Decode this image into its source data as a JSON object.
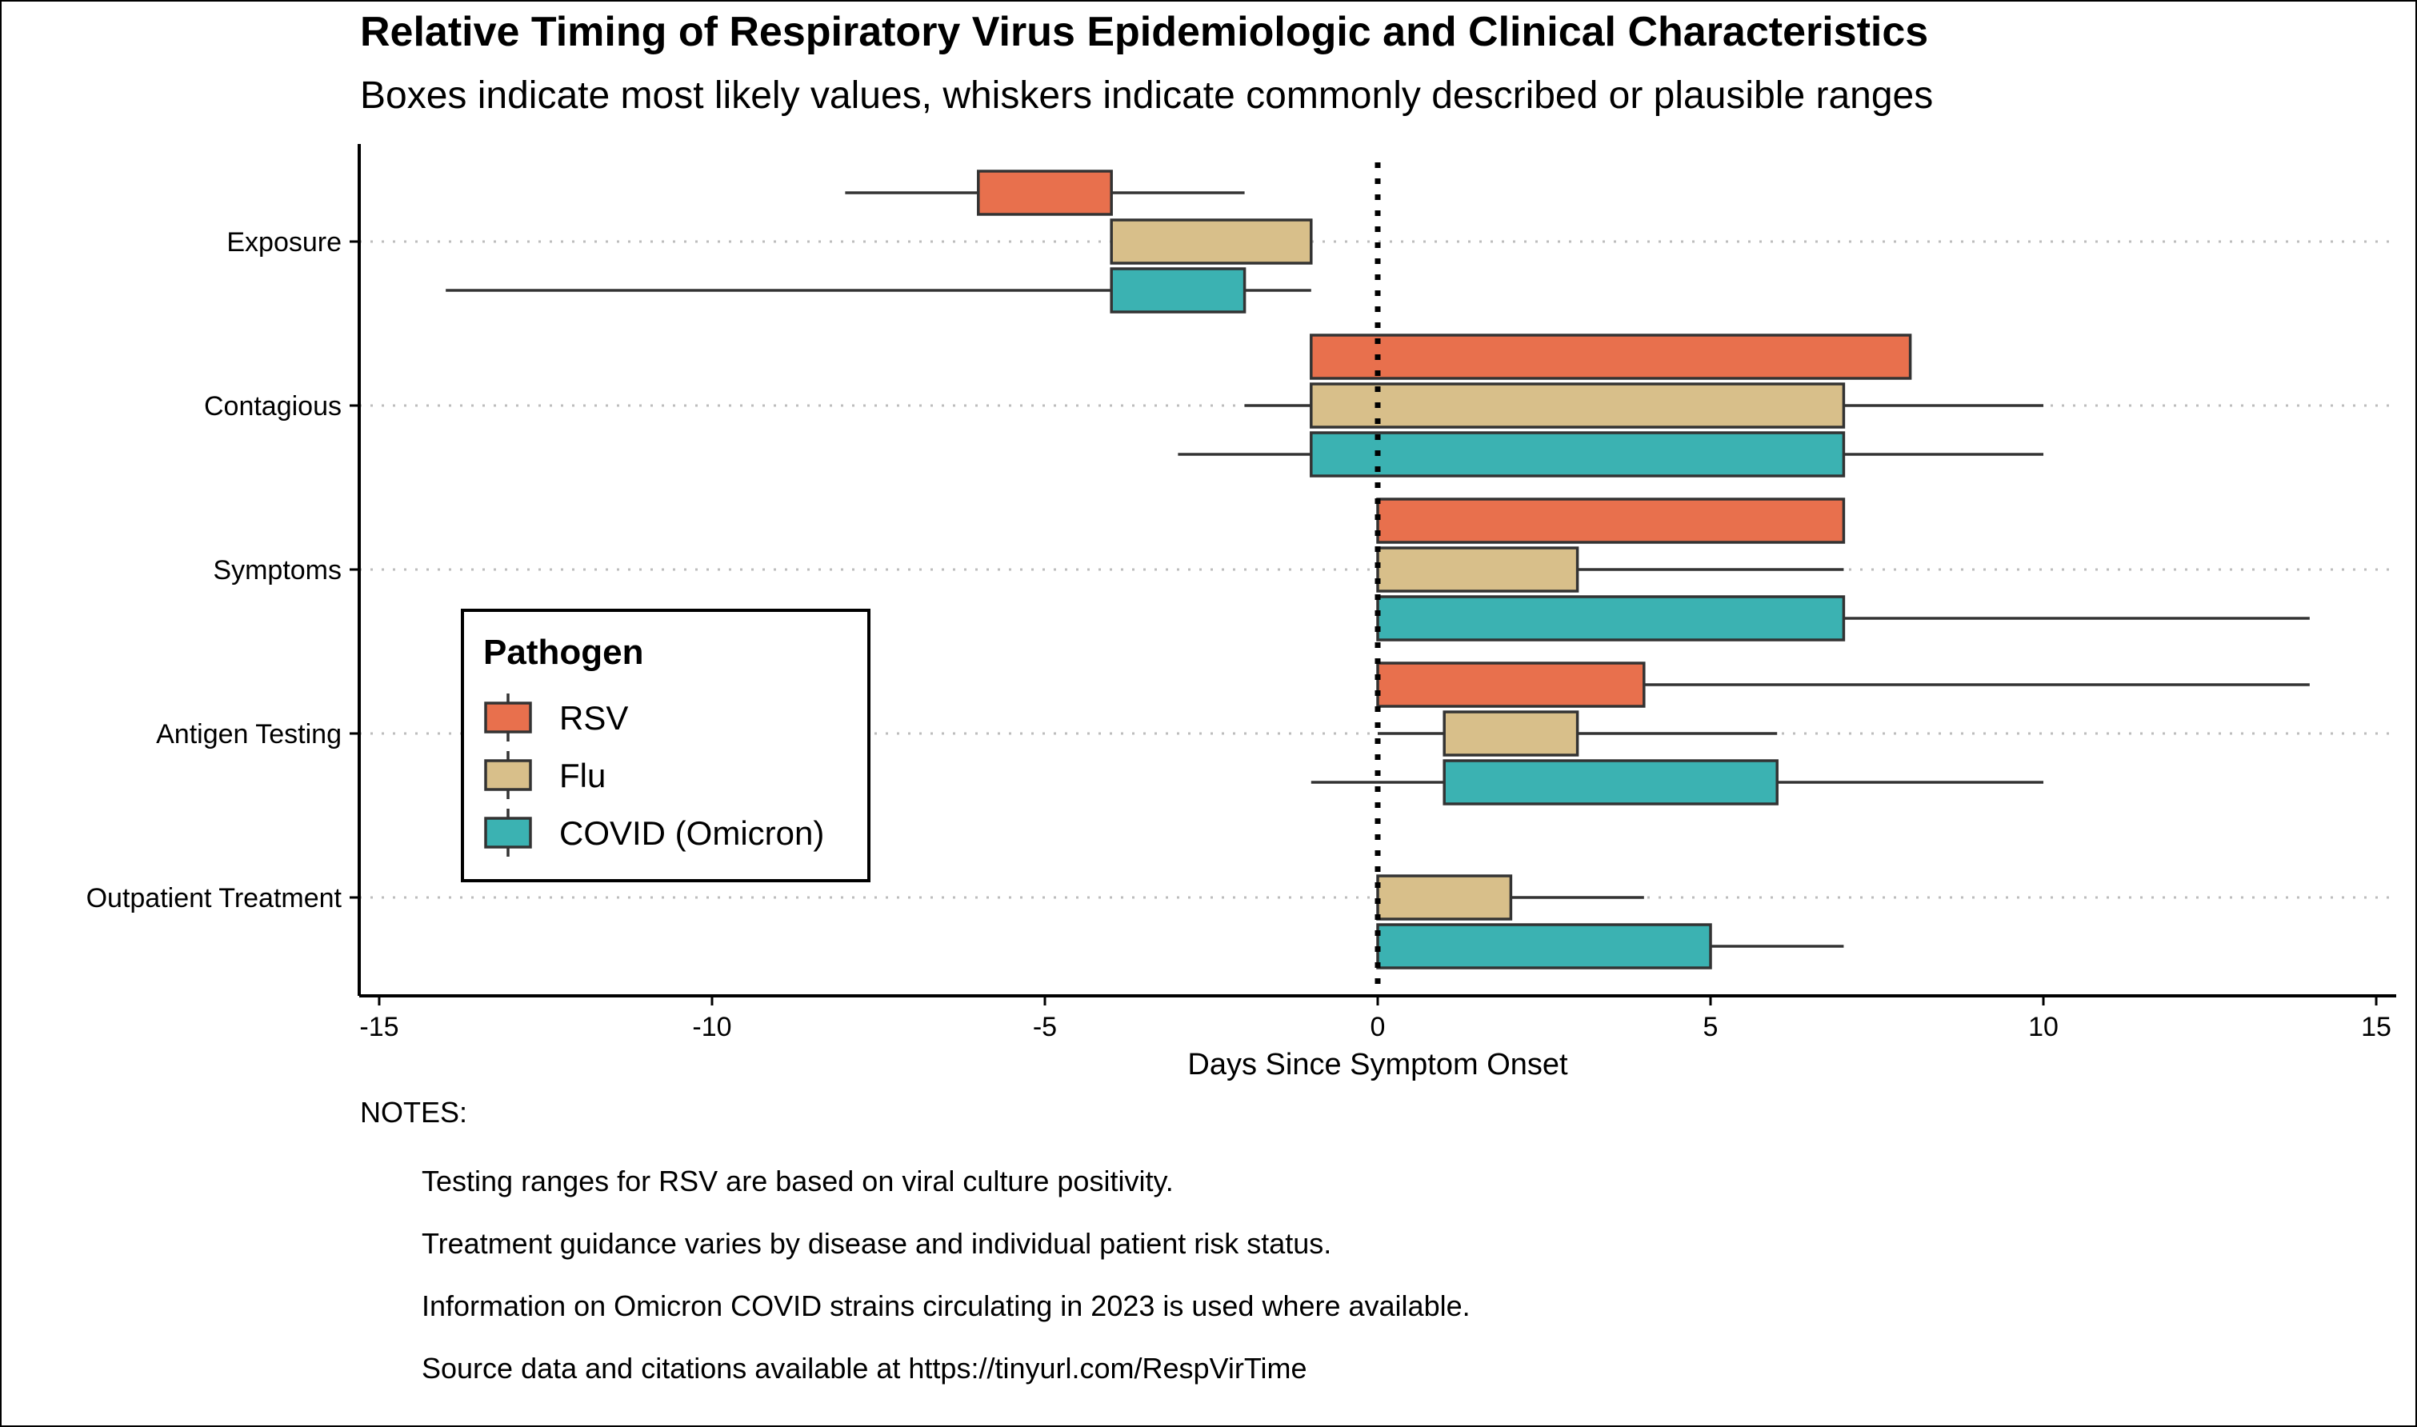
{
  "chart_data": {
    "type": "boxplot-horizontal",
    "title": "Relative Timing of Respiratory Virus Epidemiologic and Clinical Characteristics",
    "subtitle": "Boxes indicate most likely values, whiskers indicate commonly described or plausible ranges",
    "xlabel": "Days Since Symptom Onset",
    "xlim": [
      -15.3,
      15.3
    ],
    "xticks": [
      -15,
      -10,
      -5,
      0,
      5,
      10,
      15
    ],
    "reference_line_x": 0,
    "grid": "dotted horizontal at categories",
    "categories": [
      "Exposure",
      "Contagious",
      "Symptoms",
      "Antigen Testing",
      "Outpatient Treatment"
    ],
    "legend": {
      "title": "Pathogen",
      "placement": "bottom-left inside plot",
      "entries": [
        "RSV",
        "Flu",
        "COVID (Omicron)"
      ]
    },
    "series": [
      {
        "name": "RSV",
        "color": "#E8704D",
        "data": [
          {
            "category": "Exposure",
            "whisker_min": -8,
            "box_min": -6,
            "box_max": -4,
            "whisker_max": -2
          },
          {
            "category": "Contagious",
            "whisker_min": -1,
            "box_min": -1,
            "box_max": 8,
            "whisker_max": 8
          },
          {
            "category": "Symptoms",
            "whisker_min": 0,
            "box_min": 0,
            "box_max": 7,
            "whisker_max": 7
          },
          {
            "category": "Antigen Testing",
            "whisker_min": 0,
            "box_min": 0,
            "box_max": 4,
            "whisker_max": 14
          }
        ]
      },
      {
        "name": "Flu",
        "color": "#D8BF8A",
        "data": [
          {
            "category": "Exposure",
            "whisker_min": -4,
            "box_min": -4,
            "box_max": -1,
            "whisker_max": -1
          },
          {
            "category": "Contagious",
            "whisker_min": -2,
            "box_min": -1,
            "box_max": 7,
            "whisker_max": 10
          },
          {
            "category": "Symptoms",
            "whisker_min": 0,
            "box_min": 0,
            "box_max": 3,
            "whisker_max": 7
          },
          {
            "category": "Antigen Testing",
            "whisker_min": 0,
            "box_min": 1,
            "box_max": 3,
            "whisker_max": 6
          },
          {
            "category": "Outpatient Treatment",
            "whisker_min": 0,
            "box_min": 0,
            "box_max": 2,
            "whisker_max": 4
          }
        ]
      },
      {
        "name": "COVID (Omicron)",
        "color": "#3BB2B2",
        "data": [
          {
            "category": "Exposure",
            "whisker_min": -14,
            "box_min": -4,
            "box_max": -2,
            "whisker_max": -1
          },
          {
            "category": "Contagious",
            "whisker_min": -3,
            "box_min": -1,
            "box_max": 7,
            "whisker_max": 10
          },
          {
            "category": "Symptoms",
            "whisker_min": 0,
            "box_min": 0,
            "box_max": 7,
            "whisker_max": 14
          },
          {
            "category": "Antigen Testing",
            "whisker_min": -1,
            "box_min": 1,
            "box_max": 6,
            "whisker_max": 10
          },
          {
            "category": "Outpatient Treatment",
            "whisker_min": 0,
            "box_min": 0,
            "box_max": 5,
            "whisker_max": 7
          }
        ]
      }
    ]
  },
  "notes": {
    "heading": "NOTES:",
    "lines": [
      "Testing ranges for RSV are based on viral culture positivity.",
      "Treatment guidance varies by disease and individual patient risk status.",
      "Information on Omicron COVID strains circulating in 2023 is used where available.",
      "Source data and citations available at https://tinyurl.com/RespVirTime"
    ]
  }
}
